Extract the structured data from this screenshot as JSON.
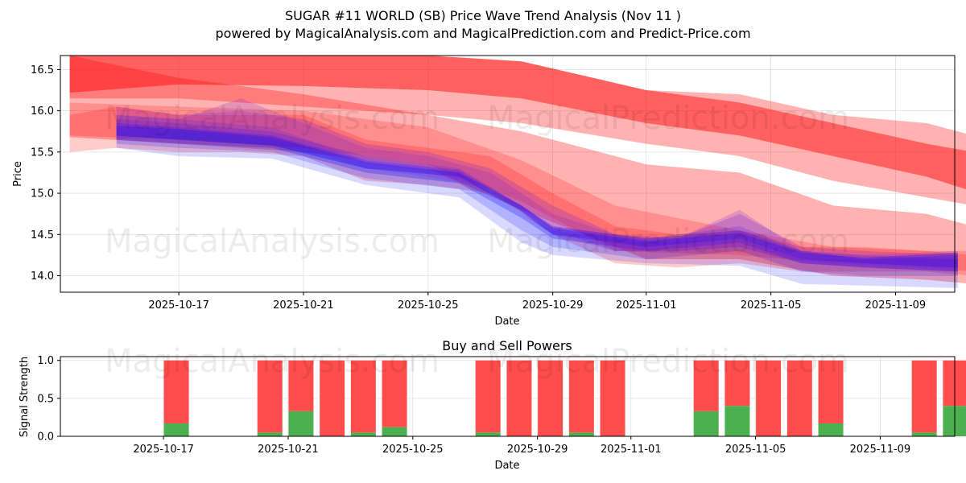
{
  "header": {
    "title": "SUGAR #11 WORLD (SB) Price Wave Trend Analysis (Nov 11 )",
    "subtitle": "powered by MagicalAnalysis.com and MagicalPrediction.com and Predict-Price.com"
  },
  "watermarks": {
    "analysis": "MagicalAnalysis.com",
    "prediction": "MagicalPrediction.com"
  },
  "colors": {
    "red_band": "#ff0000",
    "blue_band": "#0000ff",
    "purple_band": "#7a1fd6",
    "buy": "#4caf50",
    "sell": "#ff4d4d",
    "grid": "#e0e0e0"
  },
  "chart_data": [
    {
      "type": "area",
      "title": "",
      "xlabel": "Date",
      "ylabel": "Price",
      "xlim": [
        -1.8,
        26.9
      ],
      "ylim": [
        13.8,
        16.67
      ],
      "x_start_date": "2025-10-15",
      "xticks": [
        {
          "day": 2,
          "label": "2025-10-17"
        },
        {
          "day": 6,
          "label": "2025-10-21"
        },
        {
          "day": 10,
          "label": "2025-10-25"
        },
        {
          "day": 14,
          "label": "2025-10-29"
        },
        {
          "day": 17,
          "label": "2025-11-01"
        },
        {
          "day": 21,
          "label": "2025-11-05"
        },
        {
          "day": 25,
          "label": "2025-11-09"
        }
      ],
      "yticks": [
        14.0,
        14.5,
        15.0,
        15.5,
        16.0,
        16.5
      ],
      "grid": true,
      "red_bands": [
        {
          "x": [
            -1.5,
            2,
            6,
            10,
            13,
            17,
            20,
            23,
            26,
            27.5
          ],
          "lower": [
            16.22,
            16.32,
            16.3,
            16.25,
            16.15,
            15.85,
            15.7,
            15.45,
            15.2,
            15.02
          ],
          "upper": [
            16.67,
            16.67,
            16.67,
            16.67,
            16.6,
            16.25,
            16.1,
            15.85,
            15.6,
            15.5
          ],
          "opacity": 0.45
        },
        {
          "x": [
            -1.5,
            2,
            6,
            10,
            13,
            17,
            20,
            23,
            26,
            27.5
          ],
          "lower": [
            16.15,
            16.15,
            16.05,
            15.95,
            15.85,
            15.6,
            15.45,
            15.15,
            14.95,
            14.85
          ],
          "upper": [
            16.67,
            16.67,
            16.67,
            16.67,
            16.6,
            16.25,
            16.2,
            15.95,
            15.85,
            15.7
          ],
          "opacity": 0.3
        },
        {
          "x": [
            -1.5,
            2,
            6,
            10,
            13,
            17,
            20,
            23,
            26,
            27.5
          ],
          "lower": [
            15.68,
            15.6,
            15.5,
            15.3,
            14.8,
            14.2,
            14.2,
            14.0,
            13.95,
            13.9
          ],
          "upper": [
            16.67,
            16.4,
            16.2,
            15.95,
            15.75,
            15.35,
            15.25,
            14.85,
            14.75,
            14.6
          ],
          "opacity": 0.3
        },
        {
          "x": [
            -1.5,
            2,
            6,
            10,
            13,
            16,
            20,
            23,
            26,
            27.5
          ],
          "lower": [
            15.7,
            15.65,
            15.55,
            15.35,
            14.9,
            14.3,
            14.25,
            14.15,
            14.1,
            14.05
          ],
          "upper": [
            16.1,
            16.05,
            16.0,
            15.8,
            15.4,
            14.85,
            14.55,
            14.35,
            14.3,
            14.25
          ],
          "opacity": 0.2
        }
      ],
      "blue_bands": [
        {
          "x": [
            0,
            2,
            5,
            8,
            11,
            13,
            14,
            17,
            20,
            22,
            24,
            27
          ],
          "lower": [
            15.55,
            15.45,
            15.42,
            15.1,
            14.95,
            14.4,
            14.25,
            14.15,
            14.12,
            13.9,
            13.88,
            13.85
          ],
          "upper": [
            15.95,
            15.9,
            15.8,
            15.4,
            15.25,
            14.75,
            14.55,
            14.4,
            14.45,
            14.2,
            14.2,
            14.2
          ],
          "opacity": 0.15
        },
        {
          "x": [
            0,
            2,
            5,
            8,
            11,
            13,
            14,
            17,
            20,
            22,
            24,
            27
          ],
          "lower": [
            15.6,
            15.55,
            15.5,
            15.18,
            15.05,
            14.55,
            14.35,
            14.2,
            14.3,
            14.05,
            14.0,
            14.0
          ],
          "upper": [
            15.9,
            15.85,
            15.75,
            15.45,
            15.3,
            14.85,
            14.6,
            14.45,
            14.6,
            14.3,
            14.25,
            14.2
          ],
          "opacity": 0.18
        },
        {
          "x": [
            0,
            2,
            5,
            8,
            11,
            13,
            14,
            17,
            20,
            22,
            24,
            27
          ],
          "lower": [
            15.65,
            15.6,
            15.55,
            15.25,
            15.12,
            14.7,
            14.45,
            14.3,
            14.4,
            14.15,
            14.1,
            14.05
          ],
          "upper": [
            15.85,
            15.8,
            15.7,
            15.4,
            15.28,
            14.85,
            14.6,
            14.45,
            14.55,
            14.3,
            14.2,
            14.25
          ],
          "opacity": 0.25
        },
        {
          "x": [
            0,
            2,
            5,
            8,
            11,
            13,
            14,
            17,
            20,
            22,
            24,
            27
          ],
          "lower": [
            15.7,
            15.65,
            15.58,
            15.3,
            15.2,
            14.78,
            14.5,
            14.35,
            14.45,
            14.2,
            14.15,
            14.1
          ],
          "upper": [
            15.82,
            15.78,
            15.68,
            15.38,
            15.25,
            14.85,
            14.58,
            14.42,
            14.52,
            14.28,
            14.22,
            14.28
          ],
          "opacity": 0.35
        }
      ],
      "purple_bands": [
        {
          "x": [
            0,
            2,
            4,
            6,
            8,
            10,
            12,
            14,
            16,
            18,
            20,
            22,
            24,
            27
          ],
          "lower": [
            15.75,
            15.8,
            15.7,
            15.6,
            15.35,
            15.25,
            15.05,
            14.55,
            14.3,
            14.3,
            14.35,
            14.15,
            14.1,
            14.05
          ],
          "upper": [
            16.05,
            15.95,
            16.0,
            15.9,
            15.6,
            15.5,
            15.3,
            14.85,
            14.5,
            14.45,
            14.75,
            14.35,
            14.3,
            14.25
          ],
          "opacity": 0.25
        },
        {
          "x": [
            0,
            2,
            4,
            6,
            8,
            10,
            12,
            14,
            16,
            18,
            20,
            22,
            24,
            27
          ],
          "lower": [
            15.65,
            15.75,
            15.65,
            15.55,
            15.3,
            15.2,
            15.05,
            14.5,
            14.3,
            14.3,
            14.35,
            14.15,
            14.1,
            14.05
          ],
          "upper": [
            15.95,
            15.9,
            16.15,
            15.85,
            15.55,
            15.45,
            15.25,
            14.75,
            14.5,
            14.45,
            14.8,
            14.3,
            14.25,
            14.3
          ],
          "opacity": 0.2
        }
      ],
      "pink_bands": [
        {
          "x": [
            -1.5,
            0,
            2,
            4,
            6,
            8,
            10,
            12,
            14,
            16,
            18,
            20,
            22,
            24,
            26,
            27.5
          ],
          "lower": [
            15.5,
            15.55,
            15.5,
            15.5,
            15.45,
            15.15,
            15.1,
            15.0,
            14.5,
            14.15,
            14.1,
            14.15,
            14.05,
            14.05,
            14.05,
            14.0
          ],
          "upper": [
            15.95,
            16.05,
            15.95,
            15.95,
            15.95,
            15.65,
            15.55,
            15.45,
            15.0,
            14.6,
            14.5,
            14.55,
            14.35,
            14.35,
            14.3,
            14.3
          ],
          "opacity": 0.2
        }
      ]
    },
    {
      "type": "bar",
      "title": "Buy and Sell Powers",
      "xlabel": "Date",
      "ylabel": "Signal Strength",
      "ylim": [
        0,
        1.05
      ],
      "yticks": [
        0.0,
        0.5,
        1.0
      ],
      "xticks": [
        {
          "day": 2,
          "label": "2025-10-17"
        },
        {
          "day": 6,
          "label": "2025-10-21"
        },
        {
          "day": 10,
          "label": "2025-10-25"
        },
        {
          "day": 14,
          "label": "2025-10-29"
        },
        {
          "day": 17,
          "label": "2025-11-01"
        },
        {
          "day": 21,
          "label": "2025-11-05"
        },
        {
          "day": 25,
          "label": "2025-11-09"
        }
      ],
      "bars": [
        {
          "date": "2025-10-17",
          "day": 2,
          "buy": 0.17,
          "sell": 0.83
        },
        {
          "date": "2025-10-20",
          "day": 5,
          "buy": 0.05,
          "sell": 0.95
        },
        {
          "date": "2025-10-21",
          "day": 6,
          "buy": 0.33,
          "sell": 0.67
        },
        {
          "date": "2025-10-22",
          "day": 7,
          "buy": 0.0,
          "sell": 1.0
        },
        {
          "date": "2025-10-23",
          "day": 8,
          "buy": 0.05,
          "sell": 0.95
        },
        {
          "date": "2025-10-24",
          "day": 9,
          "buy": 0.12,
          "sell": 0.88
        },
        {
          "date": "2025-10-27",
          "day": 12,
          "buy": 0.05,
          "sell": 0.95
        },
        {
          "date": "2025-10-28",
          "day": 13,
          "buy": 0.0,
          "sell": 1.0
        },
        {
          "date": "2025-10-29",
          "day": 14,
          "buy": 0.0,
          "sell": 1.0
        },
        {
          "date": "2025-10-30",
          "day": 15,
          "buy": 0.05,
          "sell": 0.95
        },
        {
          "date": "2025-10-31",
          "day": 16,
          "buy": 0.0,
          "sell": 1.0
        },
        {
          "date": "2025-11-03",
          "day": 19,
          "buy": 0.33,
          "sell": 0.67
        },
        {
          "date": "2025-11-04",
          "day": 20,
          "buy": 0.4,
          "sell": 0.6
        },
        {
          "date": "2025-11-05",
          "day": 21,
          "buy": 0.0,
          "sell": 1.0
        },
        {
          "date": "2025-11-06",
          "day": 22,
          "buy": 0.0,
          "sell": 1.0
        },
        {
          "date": "2025-11-07",
          "day": 23,
          "buy": 0.17,
          "sell": 0.83
        },
        {
          "date": "2025-11-10",
          "day": 26,
          "buy": 0.05,
          "sell": 0.95
        },
        {
          "date": "2025-11-11",
          "day": 27,
          "buy": 0.4,
          "sell": 0.6
        }
      ]
    }
  ]
}
